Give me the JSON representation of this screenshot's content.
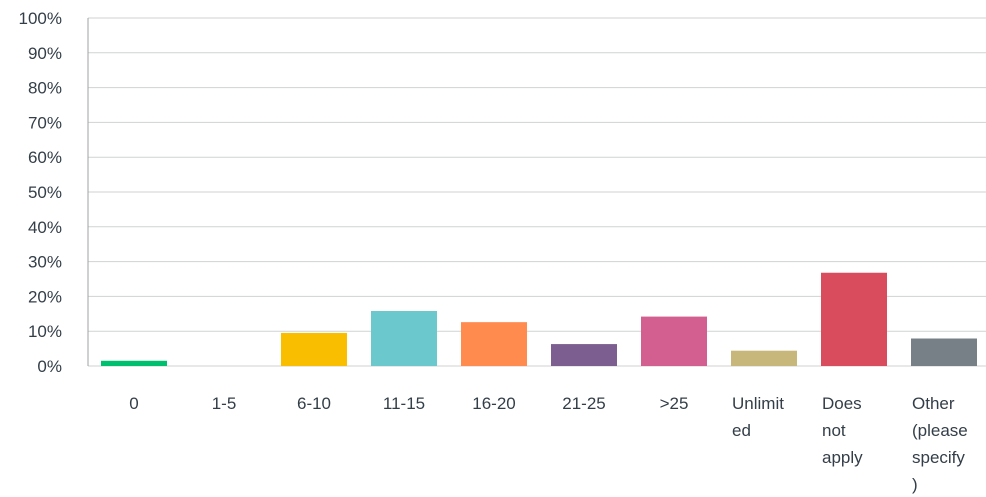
{
  "chart_data": {
    "type": "bar",
    "title": "",
    "xlabel": "",
    "ylabel": "",
    "ylim": [
      0,
      100
    ],
    "y_ticks": [
      "0%",
      "10%",
      "20%",
      "30%",
      "40%",
      "50%",
      "60%",
      "70%",
      "80%",
      "90%",
      "100%"
    ],
    "grid": true,
    "categories": [
      [
        "0"
      ],
      [
        "1-5"
      ],
      [
        "6-10"
      ],
      [
        "11-15"
      ],
      [
        "16-20"
      ],
      [
        "21-25"
      ],
      [
        ">25"
      ],
      [
        "Unlimit",
        "ed"
      ],
      [
        "Does",
        "not",
        "apply"
      ],
      [
        "Other",
        "(please",
        "specify",
        ")"
      ]
    ],
    "values": [
      1.5,
      0,
      9.5,
      15.8,
      12.6,
      6.3,
      14.2,
      4.4,
      26.8,
      7.9
    ],
    "colors": [
      "#00bf6f",
      "#507cb6",
      "#f9be00",
      "#6bc8cd",
      "#ff8b4f",
      "#7d5e90",
      "#d25f90",
      "#c8b77a",
      "#d94c5e",
      "#768086"
    ]
  }
}
